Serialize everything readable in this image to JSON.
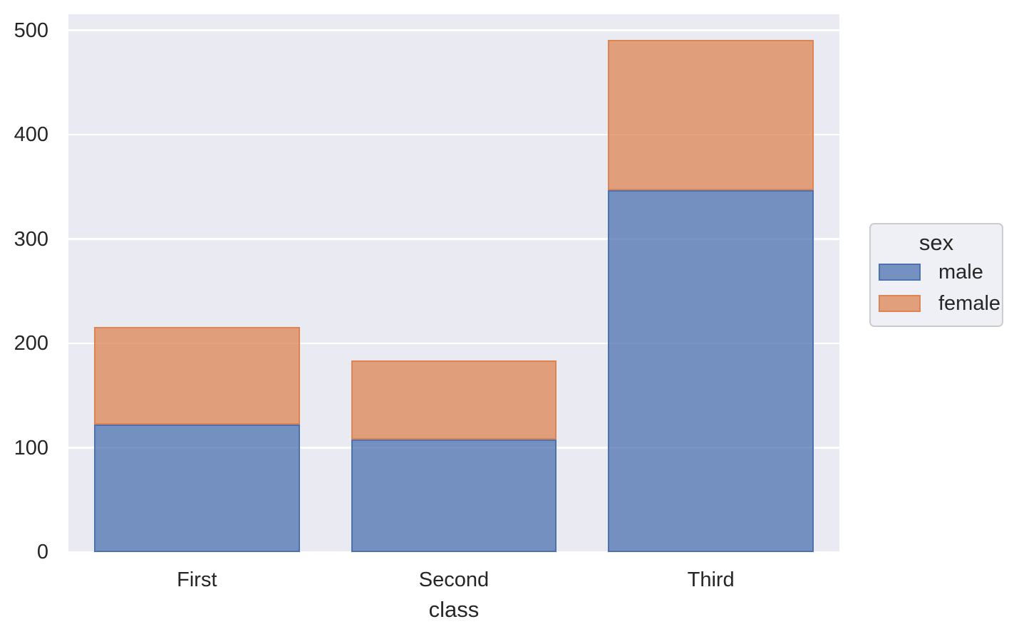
{
  "chart_data": {
    "type": "bar",
    "stacked": true,
    "title": "",
    "xlabel": "class",
    "ylabel": "",
    "categories": [
      "First",
      "Second",
      "Third"
    ],
    "series": [
      {
        "name": "male",
        "values": [
          122,
          108,
          347
        ],
        "fill": "rgba(76,114,176,0.75)",
        "edge": "#4c72b0"
      },
      {
        "name": "female",
        "values": [
          94,
          76,
          144
        ],
        "fill": "rgba(221,132,82,0.75)",
        "edge": "#dd8452"
      }
    ],
    "totals": [
      216,
      184,
      491
    ],
    "ylim": [
      0,
      515.5
    ],
    "yticks": [
      "0",
      "100",
      "200",
      "300",
      "400",
      "500"
    ],
    "grid": true,
    "legend": {
      "title": "sex",
      "entries": [
        "male",
        "female"
      ],
      "position": "right-outside"
    }
  },
  "colors": {
    "plot_background": "#eaeaf2",
    "figure_background": "#ffffff",
    "gridline": "#ffffff",
    "text": "#262626",
    "male_edge": "#4c72b0",
    "female_edge": "#dd8452",
    "legend_background": "#eef0f5",
    "legend_border": "#cccccc"
  }
}
